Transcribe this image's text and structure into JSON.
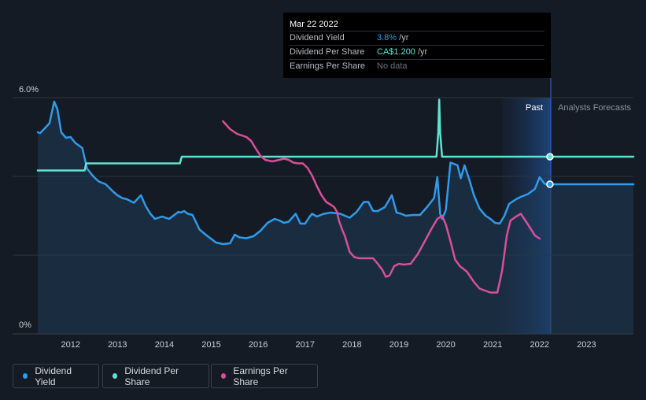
{
  "tooltip": {
    "date": "Mar 22 2022",
    "rows": [
      {
        "label": "Dividend Yield",
        "value": "3.8%",
        "unit": " /yr"
      },
      {
        "label": "Dividend Per Share",
        "value": "CA$1.200",
        "unit": " /yr"
      },
      {
        "label": "Earnings Per Share",
        "value": "No data",
        "unit": ""
      }
    ]
  },
  "regions": {
    "past": "Past",
    "forecast": "Analysts Forecasts"
  },
  "legend": [
    {
      "label": "Dividend Yield",
      "color": "#2f9bea"
    },
    {
      "label": "Dividend Per Share",
      "color": "#5fe3d1"
    },
    {
      "label": "Earnings Per Share",
      "color": "#d94f9b"
    }
  ],
  "colors": {
    "background": "#151b24",
    "yield": "#2f9bea",
    "dps": "#5fe3d1",
    "eps": "#d94f9b"
  },
  "chart_data": {
    "type": "line",
    "title": "",
    "xlabel": "",
    "ylabel": "",
    "x_ticks": [
      "2012",
      "2013",
      "2014",
      "2015",
      "2016",
      "2017",
      "2018",
      "2019",
      "2020",
      "2021",
      "2022",
      "2023"
    ],
    "y_ticks": [
      "0%",
      "6.0%"
    ],
    "xlim": [
      2011.3,
      2024.0
    ],
    "ylim": [
      0,
      6.0
    ],
    "grid": true,
    "legend_position": "bottom-left",
    "forecast_start": 2021.25,
    "current_date": 2022.22,
    "series": [
      {
        "name": "Dividend Yield",
        "x": [
          2011.3,
          2011.35,
          2011.45,
          2011.55,
          2011.65,
          2011.72,
          2011.8,
          2011.9,
          2012.0,
          2012.1,
          2012.18,
          2012.25,
          2012.35,
          2012.45,
          2012.5,
          2012.6,
          2012.75,
          2012.9,
          2013.0,
          2013.1,
          2013.2,
          2013.35,
          2013.5,
          2013.6,
          2013.7,
          2013.8,
          2013.95,
          2014.1,
          2014.3,
          2014.35,
          2014.42,
          2014.5,
          2014.6,
          2014.75,
          2014.9,
          2015.1,
          2015.25,
          2015.4,
          2015.5,
          2015.6,
          2015.75,
          2015.9,
          2016.05,
          2016.2,
          2016.35,
          2016.45,
          2016.55,
          2016.65,
          2016.8,
          2016.9,
          2017.0,
          2017.1,
          2017.15,
          2017.25,
          2017.4,
          2017.55,
          2017.75,
          2017.95,
          2018.1,
          2018.25,
          2018.35,
          2018.45,
          2018.55,
          2018.7,
          2018.85,
          2018.95,
          2019.05,
          2019.15,
          2019.3,
          2019.45,
          2019.6,
          2019.75,
          2019.82,
          2019.88,
          2019.92,
          2020.0,
          2020.1,
          2020.15,
          2020.25,
          2020.32,
          2020.4,
          2020.5,
          2020.6,
          2020.72,
          2020.85,
          2020.95,
          2021.05,
          2021.15,
          2021.25,
          2021.35,
          2021.5,
          2021.6,
          2021.75,
          2021.9,
          2022.0,
          2022.1,
          2022.18,
          2022.22,
          2024.0
        ],
        "y": [
          5.12,
          5.1,
          5.22,
          5.35,
          5.9,
          5.7,
          5.12,
          4.98,
          5.0,
          4.85,
          4.78,
          4.72,
          4.2,
          4.05,
          3.98,
          3.87,
          3.8,
          3.62,
          3.52,
          3.45,
          3.42,
          3.33,
          3.52,
          3.25,
          3.05,
          2.92,
          2.98,
          2.92,
          3.1,
          3.08,
          3.12,
          3.05,
          3.02,
          2.65,
          2.5,
          2.32,
          2.28,
          2.3,
          2.52,
          2.45,
          2.43,
          2.48,
          2.62,
          2.82,
          2.92,
          2.88,
          2.82,
          2.85,
          3.05,
          2.8,
          2.8,
          2.98,
          3.05,
          2.98,
          3.05,
          3.08,
          3.05,
          2.95,
          3.1,
          3.35,
          3.35,
          3.12,
          3.12,
          3.22,
          3.52,
          3.08,
          3.05,
          3.0,
          3.02,
          3.02,
          3.22,
          3.45,
          3.98,
          3.05,
          2.92,
          3.15,
          4.35,
          4.33,
          4.28,
          3.95,
          4.28,
          3.92,
          3.52,
          3.18,
          3.0,
          2.92,
          2.82,
          2.8,
          3.0,
          3.3,
          3.42,
          3.48,
          3.55,
          3.68,
          3.98,
          3.82,
          3.78,
          3.8,
          3.8
        ]
      },
      {
        "name": "Dividend Per Share",
        "x": [
          2011.3,
          2012.3,
          2012.33,
          2014.33,
          2014.37,
          2019.8,
          2019.84,
          2019.86,
          2019.88,
          2019.92,
          2024.0
        ],
        "y": [
          4.15,
          4.15,
          4.33,
          4.33,
          4.5,
          4.5,
          5.1,
          5.95,
          5.1,
          4.5,
          4.5
        ]
      },
      {
        "name": "Earnings Per Share",
        "x": [
          2015.25,
          2015.4,
          2015.55,
          2015.75,
          2015.85,
          2015.95,
          2016.05,
          2016.15,
          2016.3,
          2016.45,
          2016.55,
          2016.65,
          2016.75,
          2016.85,
          2016.95,
          2017.05,
          2017.15,
          2017.25,
          2017.35,
          2017.45,
          2017.55,
          2017.62,
          2017.68,
          2017.72,
          2017.8,
          2017.85,
          2017.9,
          2017.95,
          2018.05,
          2018.15,
          2018.3,
          2018.45,
          2018.55,
          2018.65,
          2018.72,
          2018.8,
          2018.9,
          2019.0,
          2019.1,
          2019.25,
          2019.4,
          2019.55,
          2019.7,
          2019.82,
          2019.92,
          2020.0,
          2020.1,
          2020.2,
          2020.3,
          2020.45,
          2020.6,
          2020.72,
          2020.88,
          2020.95,
          2021.0,
          2021.1,
          2021.2,
          2021.3,
          2021.38,
          2021.5,
          2021.6,
          2021.75,
          2021.9,
          2022.0
        ],
        "y": [
          5.4,
          5.2,
          5.08,
          5.0,
          4.9,
          4.7,
          4.52,
          4.42,
          4.38,
          4.42,
          4.45,
          4.42,
          4.35,
          4.33,
          4.33,
          4.22,
          4.02,
          3.75,
          3.52,
          3.35,
          3.28,
          3.22,
          3.1,
          2.88,
          2.62,
          2.48,
          2.28,
          2.08,
          1.95,
          1.92,
          1.92,
          1.92,
          1.78,
          1.62,
          1.45,
          1.48,
          1.72,
          1.78,
          1.76,
          1.78,
          2.02,
          2.35,
          2.68,
          2.92,
          3.0,
          2.78,
          2.35,
          1.88,
          1.72,
          1.58,
          1.32,
          1.15,
          1.08,
          1.05,
          1.05,
          1.05,
          1.6,
          2.5,
          2.88,
          2.98,
          3.05,
          2.78,
          2.5,
          2.42
        ]
      }
    ]
  }
}
